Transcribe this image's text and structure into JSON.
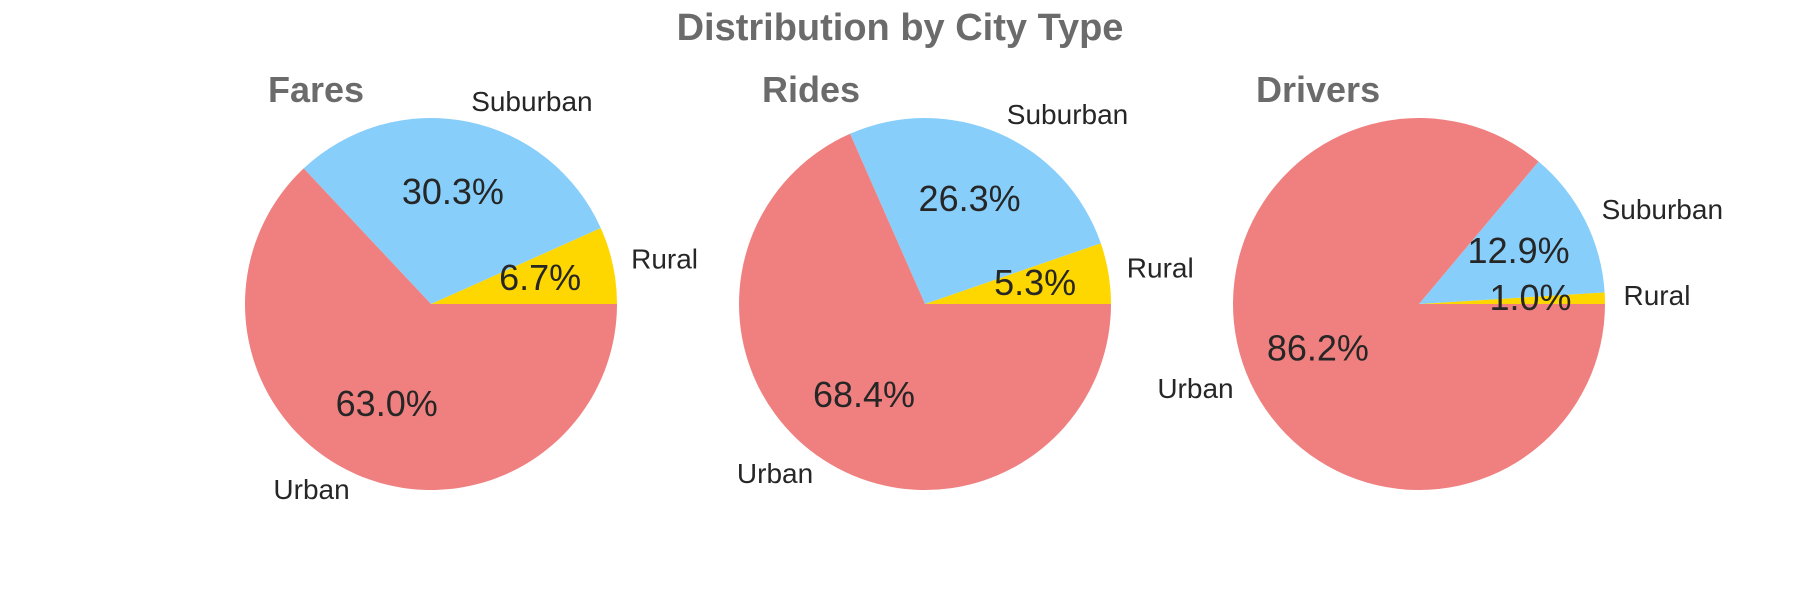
{
  "figure": {
    "title": "Distribution by City Type"
  },
  "chart_data": [
    {
      "type": "pie",
      "title": "Fares",
      "labels": [
        "Rural",
        "Suburban",
        "Urban"
      ],
      "values": [
        6.7,
        30.3,
        63.0
      ],
      "percent_labels": [
        "6.7%",
        "30.3%",
        "63.0%"
      ],
      "colors": [
        "#FFD700",
        "#87CEFA",
        "#F08080"
      ]
    },
    {
      "type": "pie",
      "title": "Rides",
      "labels": [
        "Rural",
        "Suburban",
        "Urban"
      ],
      "values": [
        5.3,
        26.3,
        68.4
      ],
      "percent_labels": [
        "5.3%",
        "26.3%",
        "68.4%"
      ],
      "colors": [
        "#FFD700",
        "#87CEFA",
        "#F08080"
      ]
    },
    {
      "type": "pie",
      "title": "Drivers",
      "labels": [
        "Rural",
        "Suburban",
        "Urban"
      ],
      "values": [
        1.0,
        12.9,
        86.2
      ],
      "percent_labels": [
        "1.0%",
        "12.9%",
        "86.2%"
      ],
      "colors": [
        "#FFD700",
        "#87CEFA",
        "#F08080"
      ]
    }
  ]
}
